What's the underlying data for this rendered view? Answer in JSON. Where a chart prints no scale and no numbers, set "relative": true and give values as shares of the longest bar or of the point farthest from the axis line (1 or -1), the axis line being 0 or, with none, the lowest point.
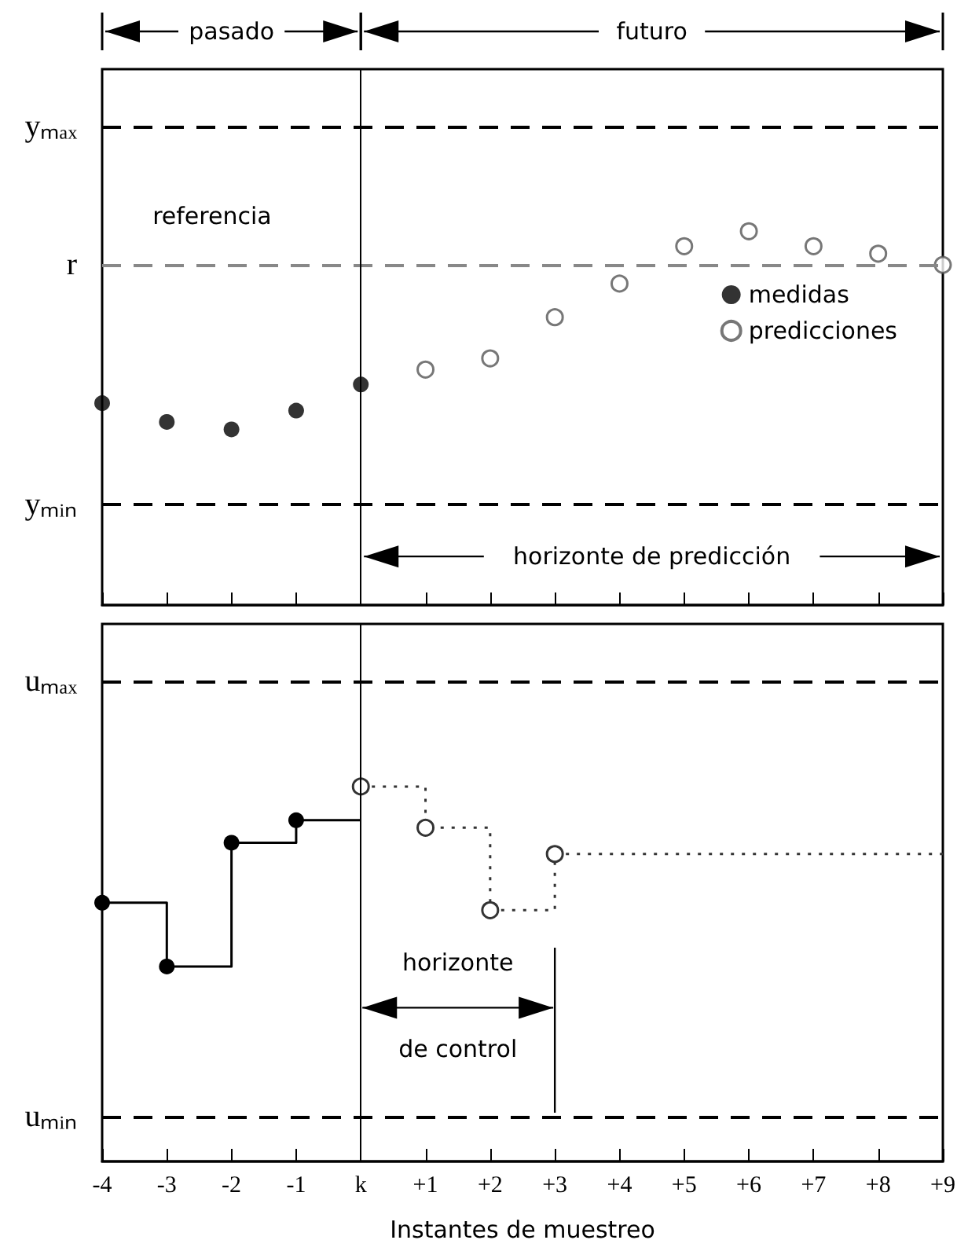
{
  "chart_data": [
    {
      "type": "scatter",
      "relative": true,
      "annotations": [
        "pasado",
        "futuro",
        "horizonte de predicción",
        "referencia"
      ],
      "xlim": [
        -4,
        9
      ],
      "xticks": [
        {
          "value": -4,
          "label": null
        },
        {
          "value": -3,
          "label": null
        },
        {
          "value": -2,
          "label": null
        },
        {
          "value": -1,
          "label": null
        },
        {
          "value": 0,
          "label": null
        },
        {
          "value": 1,
          "label": null
        },
        {
          "value": 2,
          "label": null
        },
        {
          "value": 3,
          "label": null
        },
        {
          "value": 4,
          "label": null
        },
        {
          "value": 5,
          "label": null
        },
        {
          "value": 6,
          "label": null
        },
        {
          "value": 7,
          "label": null
        },
        {
          "value": 8,
          "label": null
        },
        {
          "value": 9,
          "label": null
        }
      ],
      "tick_labels": false,
      "legend": "right",
      "marker": "circle",
      "series": [
        {
          "name": "medidas",
          "color": "#000000",
          "x": [
            -4,
            -3,
            -2,
            -1,
            0
          ],
          "values": [
            0.54,
            0.49,
            0.47,
            0.52,
            0.59
          ]
        },
        {
          "name": "predicciones",
          "color": "#555555",
          "x": [
            1,
            2,
            3,
            4,
            5,
            6,
            7,
            8,
            9
          ],
          "values": [
            0.63,
            0.66,
            0.77,
            0.86,
            0.96,
            1,
            0.96,
            0.94,
            0.91
          ]
        }
      ],
      "ref_lines": [
        {
          "axis": "y",
          "value": 1.28,
          "label": "yₘₐₓ",
          "color": "#000000",
          "line_style": "dashed"
        },
        {
          "axis": "y",
          "value": 0.91,
          "label": "r",
          "color": "#888888",
          "line_style": "dashed"
        },
        {
          "axis": "y",
          "value": 0.27,
          "label": "yₘᵢₙ",
          "color": "#000000",
          "line_style": "dashed"
        },
        {
          "axis": "x",
          "value": 0,
          "color": "#000000",
          "line_style": "solid"
        }
      ]
    },
    {
      "type": "step",
      "relative": true,
      "xlabel": "Instantes de muestreo",
      "annotations": [
        "horizonte",
        "de control"
      ],
      "xlim": [
        -4,
        9
      ],
      "xticks": [
        -4,
        -3,
        -2,
        -1,
        {
          "value": 0,
          "label": "k"
        },
        {
          "value": 1,
          "label": "+1"
        },
        {
          "value": 2,
          "label": "+2"
        },
        {
          "value": 3,
          "label": "+3"
        },
        {
          "value": 4,
          "label": "+4"
        },
        {
          "value": 5,
          "label": "+5"
        },
        {
          "value": 6,
          "label": "+6"
        },
        {
          "value": 7,
          "label": "+7"
        },
        {
          "value": 8,
          "label": "+8"
        },
        {
          "value": 9,
          "label": "+9"
        }
      ],
      "tick_labels": "x",
      "marker": "circle",
      "series": [
        {
          "color": "#000000",
          "x": [
            -4,
            -3,
            -2,
            -1,
            0
          ],
          "values": [
            0.69,
            0.52,
            0.85,
            0.91,
            0.91
          ],
          "line_style": "solid"
        },
        {
          "color": "#333333",
          "x": [
            0,
            1,
            2,
            3,
            9
          ],
          "values": [
            1,
            0.89,
            0.67,
            0.82,
            0.82
          ],
          "line_style": "dotted"
        }
      ],
      "ref_lines": [
        {
          "axis": "y",
          "value": 1.28,
          "label": "uₘₐₓ",
          "color": "#000000",
          "line_style": "dashed"
        },
        {
          "axis": "y",
          "value": 0.12,
          "label": "uₘᵢₙ",
          "color": "#000000",
          "line_style": "dashed"
        },
        {
          "axis": "x",
          "value": 0,
          "color": "#000000",
          "line_style": "solid"
        }
      ]
    }
  ]
}
